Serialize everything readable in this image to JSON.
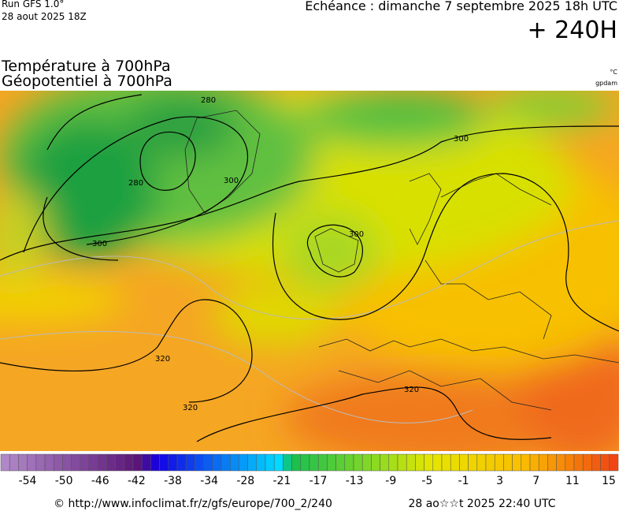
{
  "header": {
    "run": "Run GFS 1.0°",
    "run_date": "28 aout 2025 18Z",
    "valid": "Echéance : dimanche 7 septembre 2025 18h UTC",
    "lead": "+ 240H",
    "field1": "Température à 700hPa",
    "field2": "Géopotentiel à 700hPa",
    "unit1": "°C",
    "unit2": "gpdam"
  },
  "contour_labels": [
    "280",
    "280",
    "300",
    "300",
    "300",
    "300",
    "320",
    "320",
    "320"
  ],
  "colorbar": {
    "labels": [
      "-54",
      "-50",
      "-46",
      "-42",
      "-38",
      "-34",
      "-28",
      "-21",
      "-17",
      "-13",
      "-9",
      "-5",
      "-1",
      "3",
      "7",
      "11",
      "15"
    ]
  },
  "footer": {
    "url": "© http://www.infoclimat.fr/z/gfs/europe/700_2/240",
    "timestamp": "28 ao☆☆t 2025 22:40 UTC"
  }
}
